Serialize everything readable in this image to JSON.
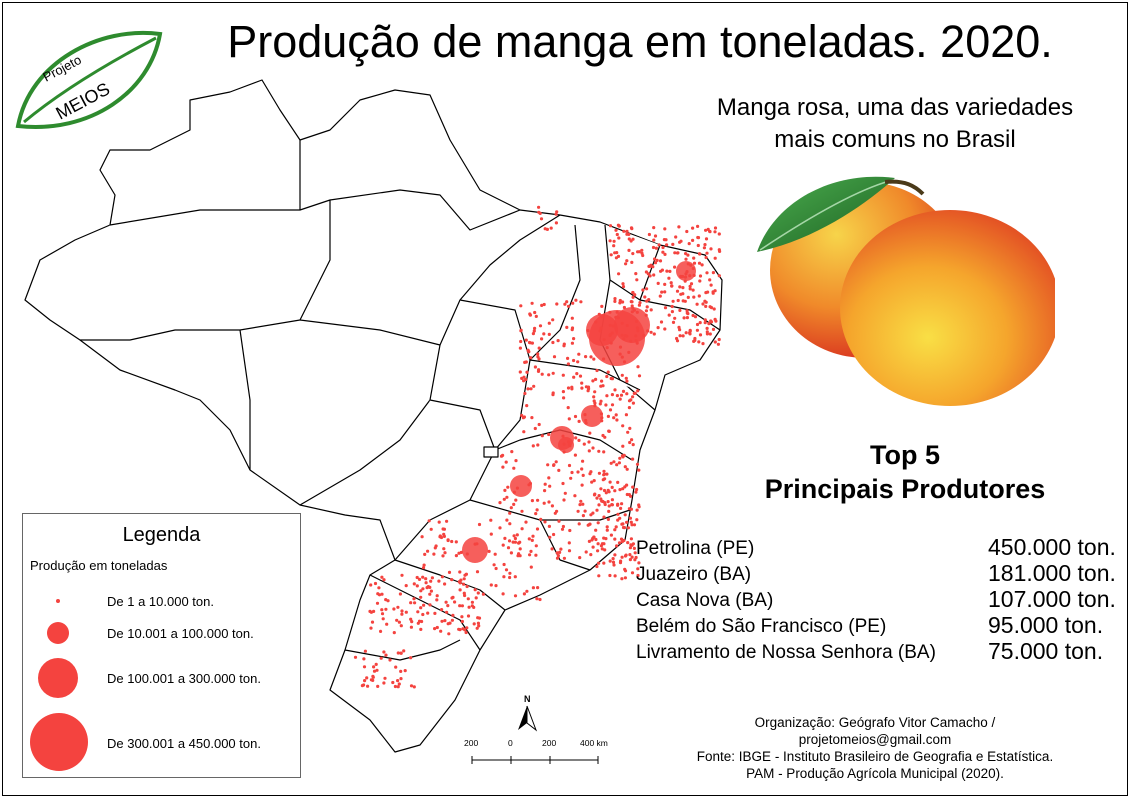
{
  "title": "Produção de manga em toneladas. 2020.",
  "logo": {
    "line1": "Projeto",
    "line2": "MEIOS"
  },
  "mango_caption": [
    "Manga rosa, uma das variedades",
    "mais comuns no Brasil"
  ],
  "top5": {
    "line1": "Top 5",
    "line2": "Principais Produtores"
  },
  "producers": [
    {
      "name": "Petrolina (PE)",
      "value": "450.000 ton."
    },
    {
      "name": "Juazeiro (BA)",
      "value": "181.000 ton."
    },
    {
      "name": "Casa Nova (BA)",
      "value": "107.000 ton."
    },
    {
      "name": "Belém do São Francisco (PE)",
      "value": "95.000 ton."
    },
    {
      "name": "Livramento de Nossa Senhora (BA)",
      "value": "75.000 ton."
    }
  ],
  "legend": {
    "title": "Legenda",
    "subtitle": "Produção em toneladas",
    "items": [
      {
        "label": "De 1 a 10.000 ton."
      },
      {
        "label": "De 10.001 a 100.000 ton."
      },
      {
        "label": "De 100.001 a 300.000 ton."
      },
      {
        "label": "De 300.001 a 450.000 ton."
      }
    ]
  },
  "scale": {
    "north": "N",
    "ticks": [
      "200",
      "0",
      "200",
      "400 km"
    ]
  },
  "credits": [
    "Organização: Geógrafo Vitor Camacho /",
    "projetomeios@gmail.com",
    "Fonte: IBGE - Instituto Brasileiro de Geografia e Estatística.",
    "PAM - Produção Agrícola Municipal (2020)."
  ],
  "colors": {
    "symbol": "#f4433f",
    "leaf": "#2e8b2e",
    "mango_red": "#e0352b",
    "mango_yellow": "#f7c52a"
  }
}
